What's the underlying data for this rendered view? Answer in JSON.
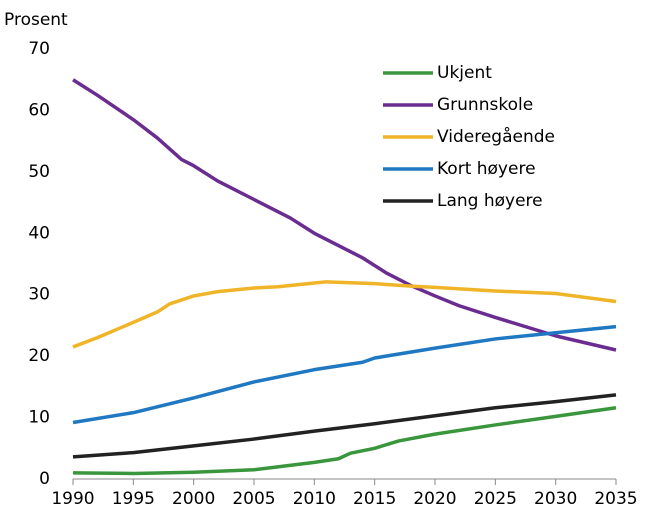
{
  "chart_data": {
    "type": "line",
    "y_label": "Prosent",
    "xlim": [
      1990,
      2035
    ],
    "xticks": [
      1990,
      1995,
      2000,
      2005,
      2010,
      2015,
      2020,
      2025,
      2030,
      2035
    ],
    "ylim": [
      0,
      70
    ],
    "yticks": [
      0,
      10,
      20,
      30,
      40,
      50,
      60,
      70
    ],
    "grid": false,
    "legend": "upper-right",
    "series": [
      {
        "name": "Ukjent",
        "color": "#3a963c",
        "x": [
          1990,
          1995,
          2000,
          2005,
          2010,
          2012,
          2013,
          2015,
          2017,
          2020,
          2025,
          2030,
          2035
        ],
        "values": [
          1.0,
          0.9,
          1.1,
          1.5,
          2.7,
          3.3,
          4.2,
          5.0,
          6.2,
          7.3,
          8.8,
          10.2,
          11.6
        ]
      },
      {
        "name": "Grunnskole",
        "color": "#6a2c91",
        "x": [
          1990,
          1992,
          1995,
          1997,
          1999,
          2000,
          2002,
          2005,
          2008,
          2010,
          2012,
          2014,
          2016,
          2018,
          2020,
          2022,
          2025,
          2030,
          2035
        ],
        "values": [
          65,
          62.5,
          58.5,
          55.5,
          52,
          51,
          48.5,
          45.5,
          42.5,
          40,
          38,
          36,
          33.5,
          31.5,
          29.8,
          28.2,
          26.3,
          23.3,
          21
        ]
      },
      {
        "name": "Videregående",
        "color": "#f0b429",
        "x": [
          1990,
          1992,
          1995,
          1997,
          1998,
          2000,
          2002,
          2005,
          2007,
          2010,
          2011,
          2015,
          2018,
          2020,
          2025,
          2030,
          2035
        ],
        "values": [
          21.5,
          23,
          25.5,
          27.2,
          28.5,
          29.8,
          30.5,
          31.1,
          31.3,
          31.9,
          32.1,
          31.8,
          31.4,
          31.2,
          30.6,
          30.2,
          28.9
        ]
      },
      {
        "name": "Kort høyere",
        "color": "#1f78c1",
        "x": [
          1990,
          1995,
          2000,
          2005,
          2010,
          2014,
          2015,
          2020,
          2025,
          2030,
          2035
        ],
        "values": [
          9.2,
          10.8,
          13.2,
          15.8,
          17.8,
          19.0,
          19.7,
          21.3,
          22.8,
          23.8,
          24.8
        ]
      },
      {
        "name": "Lang høyere",
        "color": "#222222",
        "x": [
          1990,
          1995,
          2000,
          2005,
          2010,
          2015,
          2020,
          2025,
          2030,
          2035
        ],
        "values": [
          3.6,
          4.3,
          5.4,
          6.5,
          7.8,
          9.0,
          10.3,
          11.6,
          12.6,
          13.7
        ]
      }
    ]
  }
}
